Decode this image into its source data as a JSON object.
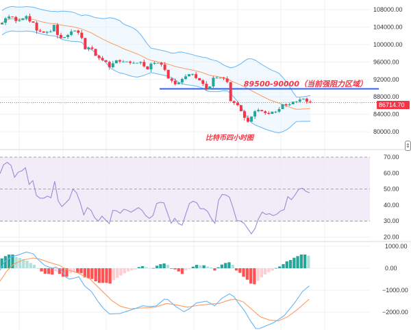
{
  "chart_data": [
    {
      "type": "candlestick",
      "title": "比特币四小时图",
      "price_axis": {
        "ticks": [
          "108000.00",
          "104000.00",
          "100000.00",
          "96000.00",
          "92000.00",
          "88000.00",
          "84000.00",
          "80000.00"
        ],
        "tick_values": [
          108000,
          104000,
          100000,
          96000,
          92000,
          88000,
          84000,
          80000
        ]
      },
      "last_price": {
        "value": 86714.7,
        "label": "86714.70"
      },
      "closes": [
        105000,
        106000,
        106400,
        106300,
        105400,
        105600,
        106000,
        106500,
        105300,
        105000,
        103200,
        103000,
        102700,
        102900,
        103000,
        104500,
        102200,
        101500,
        101700,
        102200,
        103000,
        103200,
        102700,
        101500,
        98900,
        99300,
        99000,
        97400,
        96900,
        96400,
        96000,
        94800,
        95700,
        96400,
        96100,
        96100,
        96100,
        95800,
        95800,
        95800,
        96000,
        95000,
        94300,
        95600,
        95800,
        95800,
        95400,
        94200,
        92200,
        91700,
        90900,
        91300,
        92100,
        92700,
        93200,
        93200,
        92300,
        91800,
        91000,
        89700,
        90400,
        92400,
        92400,
        92400,
        92200,
        91400,
        87000,
        86600,
        86100,
        84700,
        83200,
        82300,
        83500,
        84700,
        85000,
        84700,
        84300,
        84100,
        84600,
        84600,
        85200,
        86300,
        86100,
        86300,
        86900,
        86900,
        87400,
        87600,
        86900,
        86714.7
      ],
      "first_open": 104600,
      "indicators": [
        "Bollinger Bands (20, 2)"
      ],
      "resistance": {
        "low": 89500,
        "high": 90000,
        "label": "89500-90000（当前强阻力区域）"
      },
      "annotation": "比特币四小时图",
      "colors": {
        "up": "#26a69a",
        "down": "#f23645",
        "band": "#64b5f6",
        "basis": "#ff9a5c",
        "resistance": "#2962ff"
      }
    },
    {
      "type": "line",
      "name": "RSI",
      "axis": {
        "ticks": [
          "70.00",
          "60.00",
          "50.00",
          "40.00",
          "30.00",
          "20.00"
        ],
        "tick_values": [
          70,
          60,
          50,
          40,
          30,
          20
        ]
      },
      "levels": [
        70,
        50,
        30
      ],
      "values": [
        59.6,
        65.3,
        66.7,
        64.9,
        57.4,
        60.6,
        61.4,
        63.4,
        52.9,
        55.3,
        46,
        44.3,
        44.3,
        45.6,
        44.6,
        54.9,
        42.4,
        39.1,
        41.3,
        43.6,
        50,
        47.7,
        41.7,
        33.9,
        38.4,
        36.7,
        32,
        30,
        33.1,
        30.6,
        28.4,
        36.7,
        36.4,
        34.9,
        37.4,
        36.7,
        35.6,
        37,
        38.4,
        36.7,
        33.4,
        31.7,
        33.4,
        41,
        41.7,
        41.4,
        34.9,
        28.6,
        31.7,
        28.4,
        27.4,
        34.3,
        41,
        42.4,
        41.4,
        37.7,
        37.7,
        36,
        31.7,
        28.6,
        43.1,
        46.7,
        46.3,
        44.9,
        38.1,
        30.3,
        30,
        28.6,
        25.3,
        22,
        25.3,
        31.7,
        35.6,
        34.1,
        34.6,
        33.4,
        34.3,
        36.3,
        37.1,
        45.3,
        43.4,
        46.3,
        49.9,
        50.6,
        48.6,
        47.7
      ],
      "color": "#9c89d6"
    },
    {
      "type": "bar+line",
      "name": "MACD",
      "axis": {
        "ticks": [
          "1000.00",
          "0.00",
          "−1000.00",
          "−2000.00"
        ],
        "tick_values": [
          1000,
          0,
          -1000,
          -2000
        ]
      },
      "macd": [
        [
          0,
          -104
        ],
        [
          1.3,
          292
        ],
        [
          3.3,
          521
        ],
        [
          5.3,
          604
        ],
        [
          7.7,
          740
        ],
        [
          9.7,
          656
        ],
        [
          11,
          417
        ],
        [
          13,
          135
        ],
        [
          15.3,
          0
        ],
        [
          16.3,
          52
        ],
        [
          18,
          -104
        ],
        [
          19.3,
          -417
        ],
        [
          20.3,
          -490
        ],
        [
          22,
          -438
        ],
        [
          23,
          -385
        ],
        [
          24.7,
          -802
        ],
        [
          26.7,
          -1063
        ],
        [
          28.7,
          -1531
        ],
        [
          30.3,
          -1844
        ],
        [
          32,
          -2083
        ],
        [
          35,
          -2063
        ],
        [
          37.3,
          -1948
        ],
        [
          39.3,
          -1844
        ],
        [
          41.7,
          -1708
        ],
        [
          44,
          -1750
        ],
        [
          45.7,
          -1708
        ],
        [
          48,
          -1406
        ],
        [
          49,
          -1427
        ],
        [
          51.3,
          -1740
        ],
        [
          53.7,
          -1979
        ],
        [
          55.3,
          -1844
        ],
        [
          57.3,
          -1583
        ],
        [
          60.3,
          -1500
        ],
        [
          62.7,
          -1708
        ],
        [
          64.7,
          -1375
        ],
        [
          67,
          -1167
        ],
        [
          68.3,
          -1292
        ],
        [
          69.7,
          -1604
        ],
        [
          71.3,
          -1917
        ],
        [
          73,
          -2365
        ],
        [
          74.7,
          -2750
        ],
        [
          75.7,
          -2750
        ],
        [
          77.3,
          -2646
        ],
        [
          80,
          -2469
        ],
        [
          83,
          -2156
        ],
        [
          86,
          -1583
        ],
        [
          88.3,
          -1063
        ],
        [
          90.3,
          -802
        ]
      ],
      "signal": [
        [
          0,
          -594
        ],
        [
          2,
          -125
        ],
        [
          4,
          188
        ],
        [
          6.7,
          375
        ],
        [
          9.7,
          469
        ],
        [
          11.7,
          417
        ],
        [
          14.3,
          271
        ],
        [
          17.3,
          135
        ],
        [
          19.7,
          -73
        ],
        [
          22.7,
          -208
        ],
        [
          26.3,
          -490
        ],
        [
          29.3,
          -958
        ],
        [
          32.7,
          -1479
        ],
        [
          35.3,
          -1740
        ],
        [
          38,
          -1844
        ],
        [
          41.3,
          -1813
        ],
        [
          45.3,
          -1771
        ],
        [
          48.7,
          -1604
        ],
        [
          51.3,
          -1667
        ],
        [
          54.7,
          -1771
        ],
        [
          58,
          -1688
        ],
        [
          61.3,
          -1635
        ],
        [
          64,
          -1604
        ],
        [
          66.7,
          -1458
        ],
        [
          68.7,
          -1406
        ],
        [
          71,
          -1531
        ],
        [
          73.3,
          -1844
        ],
        [
          76,
          -2208
        ],
        [
          78.7,
          -2365
        ],
        [
          81.3,
          -2396
        ],
        [
          84,
          -2208
        ],
        [
          86.7,
          -1896
        ],
        [
          90.3,
          -1406
        ]
      ],
      "histogram": [
        448,
        552,
        625,
        625,
        500,
        469,
        417,
        344,
        240,
        156,
        0,
        -146,
        -250,
        -260,
        -292,
        -146,
        -260,
        -385,
        -385,
        -229,
        -177,
        -208,
        -229,
        -417,
        -458,
        -490,
        -594,
        -667,
        -667,
        -667,
        -698,
        -542,
        -438,
        -333,
        -229,
        -146,
        -94,
        -52,
        52,
        94,
        52,
        10,
        10,
        115,
        188,
        219,
        156,
        -21,
        -52,
        -146,
        -260,
        -94,
        -42,
        73,
        156,
        135,
        135,
        83,
        31,
        -104,
        42,
        167,
        240,
        271,
        156,
        -104,
        -208,
        -385,
        -521,
        -698,
        -729,
        -573,
        -417,
        -281,
        -177,
        -104,
        10,
        83,
        188,
        313,
        375,
        479,
        552,
        625,
        625,
        573
      ],
      "colors": {
        "macd": "#64b5f6",
        "signal": "#ff9a5c",
        "pos_up": "#26a69a",
        "pos_down": "#b2dfdb",
        "neg_down": "#ff5252",
        "neg_up": "#ffcdd2"
      }
    }
  ]
}
